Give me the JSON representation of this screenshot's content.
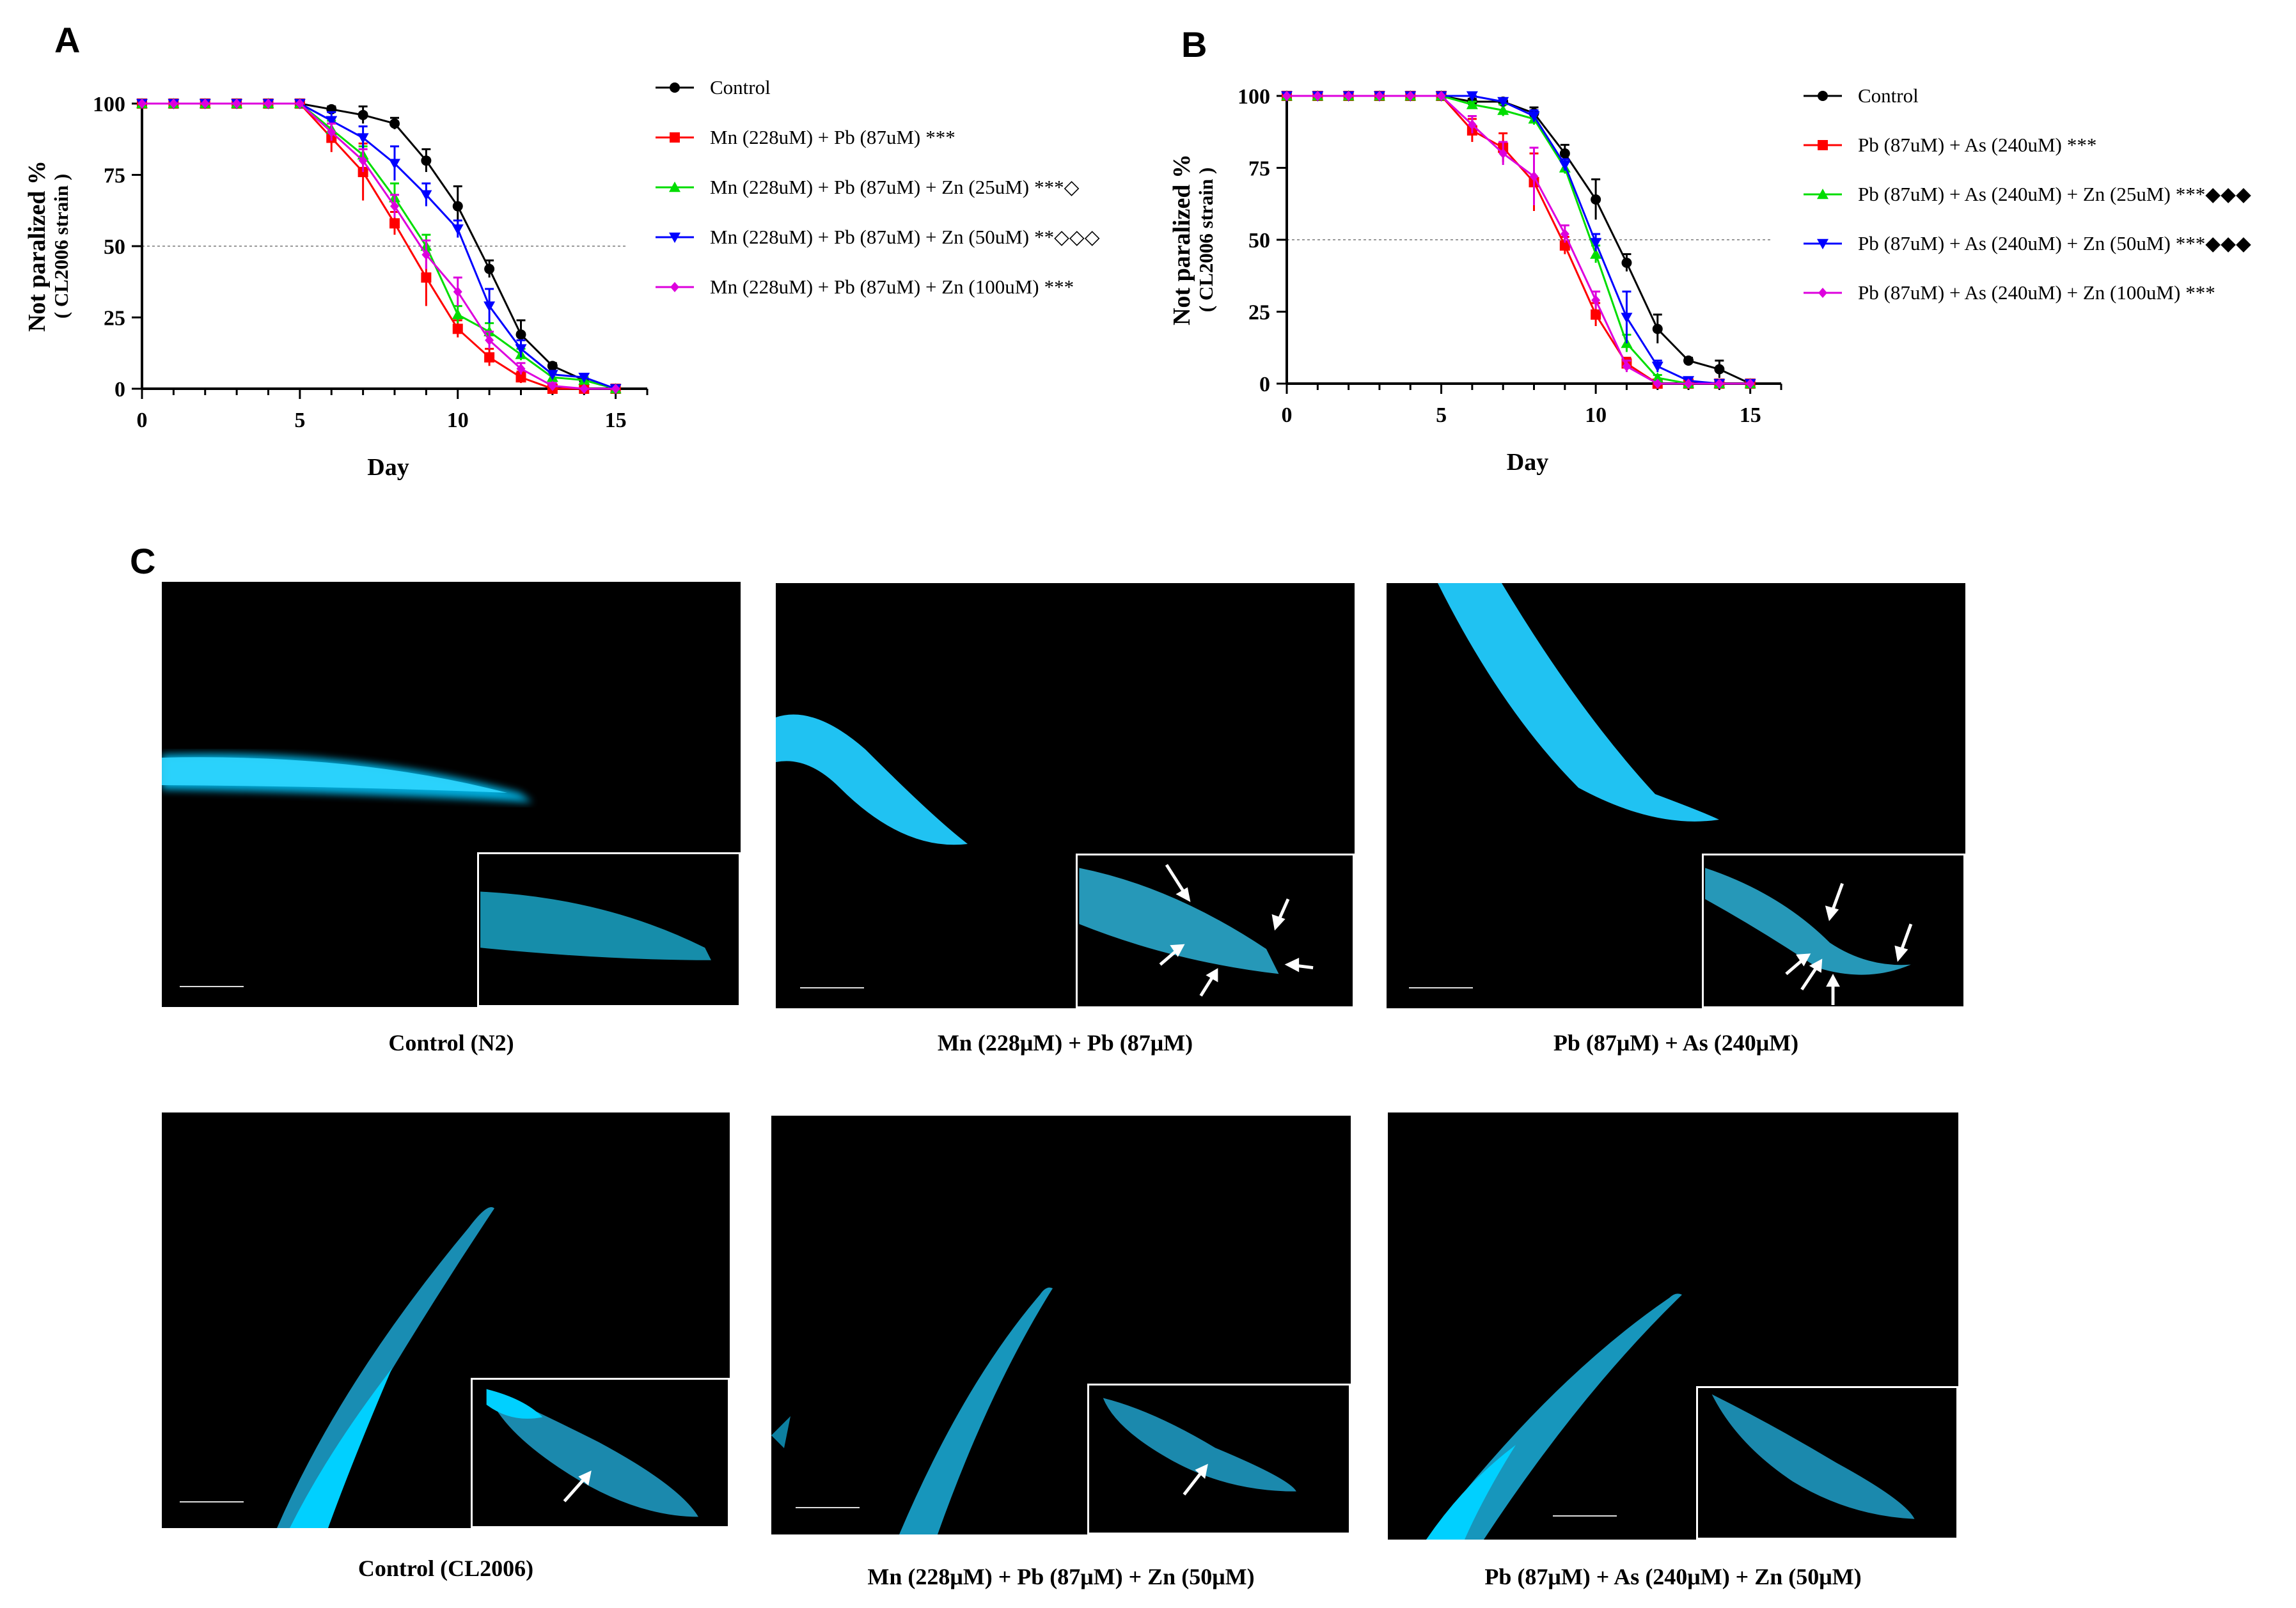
{
  "panels": {
    "a": "A",
    "b": "B",
    "c": "C"
  },
  "chart_data": [
    {
      "type": "line",
      "panel": "A",
      "title": "",
      "xlabel": "Day",
      "ylabel": "Not paralized %",
      "ylabel2": "( CL2006 strain )",
      "xlim": [
        0,
        16
      ],
      "ylim": [
        0,
        100
      ],
      "xticks": [
        "0",
        "5",
        "10",
        "15"
      ],
      "yticks": [
        "0",
        "25",
        "50",
        "75",
        "100"
      ],
      "reference_line": 50,
      "x": [
        0,
        1,
        2,
        3,
        4,
        5,
        6,
        7,
        8,
        9,
        10,
        11,
        12,
        13,
        14,
        15
      ],
      "series": [
        {
          "name": "Control",
          "label": "Control",
          "sig": "",
          "color": "#000000",
          "marker": "circle",
          "values": [
            100,
            100,
            100,
            100,
            100,
            100,
            98,
            96,
            93,
            80,
            64,
            42,
            19,
            8,
            3,
            0
          ],
          "errors": [
            0,
            0,
            0,
            0,
            0,
            0,
            1,
            3,
            2,
            4,
            7,
            3,
            5,
            1,
            1,
            0
          ]
        },
        {
          "name": "Mn+Pb",
          "label": "Mn (228uM) + Pb (87uM)",
          "sig": "***",
          "color": "#ff0000",
          "marker": "square",
          "values": [
            100,
            100,
            100,
            100,
            100,
            100,
            88,
            76,
            58,
            39,
            21,
            11,
            4,
            0,
            0,
            0
          ],
          "errors": [
            0,
            0,
            0,
            0,
            0,
            0,
            5,
            10,
            4,
            10,
            3,
            3,
            2,
            0,
            0,
            0
          ]
        },
        {
          "name": "Mn+Pb+Zn25",
          "label": "Mn (228uM) + Pb (87uM) + Zn (25uM)",
          "sig": "***◇",
          "color": "#00dd00",
          "marker": "triangle",
          "values": [
            100,
            100,
            100,
            100,
            100,
            100,
            91,
            82,
            67,
            50,
            26,
            20,
            12,
            4,
            3,
            0
          ],
          "errors": [
            0,
            0,
            0,
            0,
            0,
            0,
            3,
            3,
            5,
            4,
            3,
            3,
            2,
            1,
            1,
            0
          ]
        },
        {
          "name": "Mn+Pb+Zn50",
          "label": "Mn (228uM) + Pb (87uM) + Zn (50uM)",
          "sig": "**◇◇◇",
          "color": "#0000ff",
          "marker": "triangle-down",
          "values": [
            100,
            100,
            100,
            100,
            100,
            100,
            94,
            88,
            79,
            68,
            56,
            29,
            14,
            5,
            4,
            0
          ],
          "errors": [
            0,
            0,
            0,
            0,
            0,
            0,
            3,
            4,
            6,
            4,
            3,
            6,
            3,
            1,
            1,
            0
          ]
        },
        {
          "name": "Mn+Pb+Zn100",
          "label": "Mn (228uM) + Pb (87uM) + Zn (100uM)",
          "sig": "***",
          "color": "#dd00dd",
          "marker": "diamond",
          "values": [
            100,
            100,
            100,
            100,
            100,
            100,
            90,
            80,
            64,
            47,
            34,
            17,
            7,
            1,
            0,
            0
          ],
          "errors": [
            0,
            0,
            0,
            0,
            0,
            0,
            3,
            4,
            4,
            5,
            5,
            3,
            2,
            1,
            0,
            0
          ]
        }
      ]
    },
    {
      "type": "line",
      "panel": "B",
      "title": "",
      "xlabel": "Day",
      "ylabel": "Not paralized %",
      "ylabel2": "( CL2006 strain )",
      "xlim": [
        0,
        16
      ],
      "ylim": [
        0,
        100
      ],
      "xticks": [
        "0",
        "5",
        "10",
        "15"
      ],
      "yticks": [
        "0",
        "25",
        "50",
        "75",
        "100"
      ],
      "reference_line": 50,
      "x": [
        0,
        1,
        2,
        3,
        4,
        5,
        6,
        7,
        8,
        9,
        10,
        11,
        12,
        13,
        14,
        15
      ],
      "series": [
        {
          "name": "Control",
          "label": "Control",
          "sig": "",
          "color": "#000000",
          "marker": "circle",
          "values": [
            100,
            100,
            100,
            100,
            100,
            100,
            98,
            98,
            94,
            80,
            64,
            42,
            19,
            8,
            5,
            0
          ],
          "errors": [
            0,
            0,
            0,
            0,
            0,
            0,
            1,
            1,
            2,
            3,
            7,
            3,
            5,
            1,
            3,
            0
          ]
        },
        {
          "name": "Pb+As",
          "label": "Pb (87uM) + As (240uM)",
          "sig": "***",
          "color": "#ff0000",
          "marker": "square",
          "values": [
            100,
            100,
            100,
            100,
            100,
            100,
            88,
            82,
            70,
            48,
            24,
            7,
            0,
            0,
            0,
            0
          ],
          "errors": [
            0,
            0,
            0,
            0,
            0,
            0,
            4,
            5,
            10,
            3,
            4,
            2,
            0,
            0,
            0,
            0
          ]
        },
        {
          "name": "Pb+As+Zn25",
          "label": "Pb (87uM) + As (240uM) + Zn (25uM)",
          "sig": "***◆◆◆",
          "color": "#00dd00",
          "marker": "triangle",
          "values": [
            100,
            100,
            100,
            100,
            100,
            100,
            97,
            95,
            92,
            75,
            45,
            14,
            2,
            0,
            0,
            0
          ],
          "errors": [
            0,
            0,
            0,
            0,
            0,
            0,
            1,
            2,
            2,
            2,
            3,
            3,
            1,
            0,
            0,
            0
          ]
        },
        {
          "name": "Pb+As+Zn50",
          "label": "Pb (87uM) + As (240uM) + Zn (50uM)",
          "sig": "***◆◆◆",
          "color": "#0000ff",
          "marker": "triangle-down",
          "values": [
            100,
            100,
            100,
            100,
            100,
            100,
            100,
            98,
            93,
            76,
            49,
            23,
            6,
            1,
            0,
            0
          ],
          "errors": [
            0,
            0,
            0,
            0,
            0,
            0,
            1,
            1,
            2,
            2,
            3,
            9,
            2,
            0,
            0,
            0
          ]
        },
        {
          "name": "Pb+As+Zn100",
          "label": "Pb (87uM) + As (240uM) + Zn (100uM)",
          "sig": "***",
          "color": "#dd00dd",
          "marker": "diamond",
          "values": [
            100,
            100,
            100,
            100,
            100,
            100,
            90,
            80,
            72,
            52,
            29,
            6,
            0,
            0,
            0,
            0
          ],
          "errors": [
            0,
            0,
            0,
            0,
            0,
            0,
            3,
            4,
            10,
            3,
            3,
            2,
            0,
            0,
            0,
            0
          ]
        }
      ]
    }
  ],
  "microscopy": {
    "captions": [
      "Control (N2)",
      "Mn (228μM) + Pb (87μM)",
      "Pb (87μM) + As (240μM)",
      "Control (CL2006)",
      "Mn (228μM) + Pb (87μM) + Zn (50μM)",
      "Pb (87μM) + As (240μM) + Zn (50μM)"
    ],
    "arrow_counts": [
      0,
      5,
      5,
      1,
      1,
      0
    ],
    "colors": {
      "background": "#000000",
      "fluorescence": "#00c8ff",
      "arrow": "#ffffff"
    }
  }
}
